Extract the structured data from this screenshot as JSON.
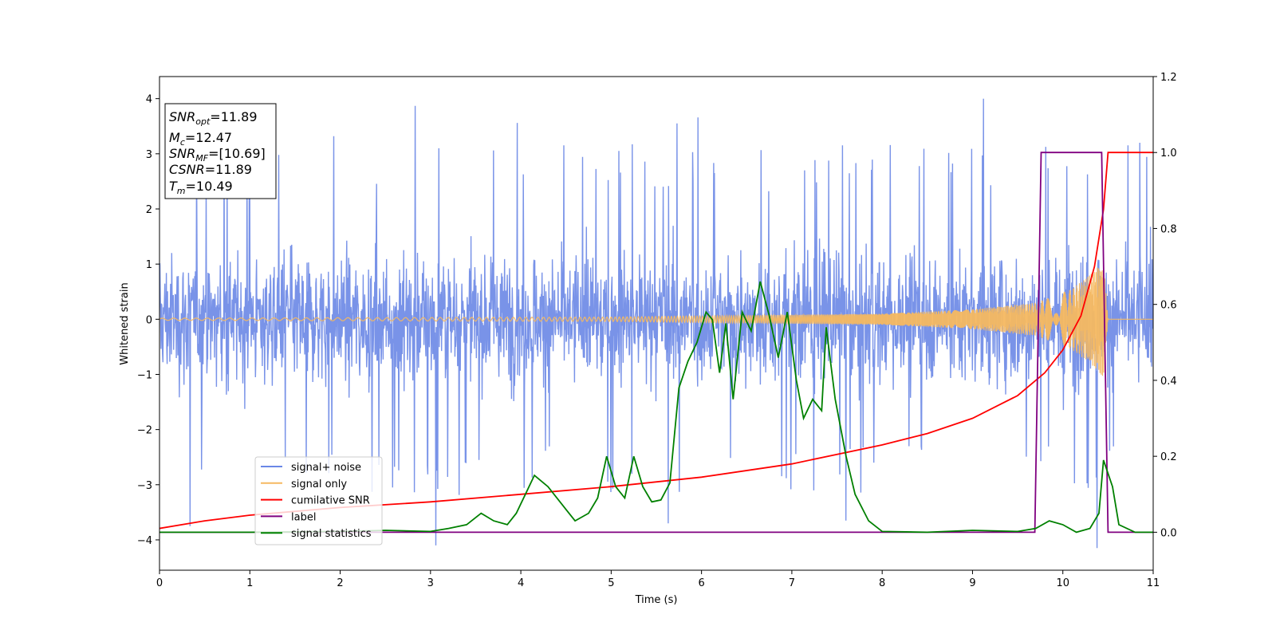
{
  "chart_data": {
    "type": "line",
    "title": "",
    "xlabel": "Time (s)",
    "ylabel": "Whitened strain",
    "y2label": "",
    "xlim": [
      0,
      11
    ],
    "ylim": [
      -4.55,
      4.4
    ],
    "y2lim": [
      -0.1,
      1.2
    ],
    "x_ticks": [
      0,
      1,
      2,
      3,
      4,
      5,
      6,
      7,
      8,
      9,
      10,
      11
    ],
    "y_ticks": [
      -4,
      -3,
      -2,
      -1,
      0,
      1,
      2,
      3,
      4
    ],
    "y2_ticks": [
      "0.0",
      "0.2",
      "0.4",
      "0.6",
      "0.8",
      "1.0",
      "1.2"
    ],
    "grid": false,
    "legend_position": "lower-left",
    "annotation": {
      "lines": [
        {
          "base": "SNR",
          "sub": "opt",
          "value": "=11.89"
        },
        {
          "base": "M",
          "sub": "c",
          "value": "=12.47"
        },
        {
          "base": "SNR",
          "sub": "MF",
          "value": "=[10.69]"
        },
        {
          "base": "CSNR",
          "sub": "",
          "value": "=11.89"
        },
        {
          "base": "T",
          "sub": "m",
          "value": "=10.49"
        }
      ]
    },
    "series": [
      {
        "name": "signal+ noise",
        "color": "#6a87e6",
        "axis": "left",
        "kind": "noise",
        "envelope": {
          "low_typical": -2.0,
          "high_typical": 2.0
        },
        "peaks": [
          {
            "x": 2.83,
            "y": 3.87
          },
          {
            "x": 9.12,
            "y": 4.0
          },
          {
            "x": 3.96,
            "y": 3.56
          },
          {
            "x": 5.96,
            "y": 3.66
          },
          {
            "x": 5.73,
            "y": 3.55
          },
          {
            "x": 1.93,
            "y": 3.32
          },
          {
            "x": 10.85,
            "y": 3.2
          },
          {
            "x": 3.06,
            "y": -4.1
          },
          {
            "x": 10.38,
            "y": -4.15
          },
          {
            "x": 0.34,
            "y": -3.75
          },
          {
            "x": 5.63,
            "y": -3.7
          },
          {
            "x": 7.6,
            "y": -3.65
          }
        ]
      },
      {
        "name": "signal only",
        "color": "#f5b860",
        "axis": "left",
        "kind": "chirp",
        "amplitude": [
          [
            0,
            0.02
          ],
          [
            5,
            0.04
          ],
          [
            8,
            0.1
          ],
          [
            9,
            0.18
          ],
          [
            9.7,
            0.3
          ],
          [
            10.1,
            0.55
          ],
          [
            10.3,
            0.8
          ],
          [
            10.45,
            1.05
          ],
          [
            10.5,
            0.0
          ],
          [
            11,
            0.0
          ]
        ]
      },
      {
        "name": "cumilative SNR",
        "color": "#ff0000",
        "axis": "right",
        "points": [
          [
            0,
            0.01
          ],
          [
            0.5,
            0.03
          ],
          [
            1,
            0.045
          ],
          [
            2,
            0.065
          ],
          [
            3,
            0.08
          ],
          [
            4,
            0.1
          ],
          [
            5,
            0.12
          ],
          [
            6,
            0.145
          ],
          [
            7,
            0.18
          ],
          [
            8,
            0.23
          ],
          [
            8.5,
            0.26
          ],
          [
            9,
            0.3
          ],
          [
            9.5,
            0.36
          ],
          [
            9.8,
            0.42
          ],
          [
            10,
            0.48
          ],
          [
            10.2,
            0.57
          ],
          [
            10.35,
            0.7
          ],
          [
            10.45,
            0.85
          ],
          [
            10.5,
            1.0
          ],
          [
            11,
            1.0
          ]
        ]
      },
      {
        "name": "label",
        "color": "#800080",
        "axis": "right",
        "points": [
          [
            0,
            0.0
          ],
          [
            9.69,
            0.0
          ],
          [
            9.76,
            1.0
          ],
          [
            10.43,
            1.0
          ],
          [
            10.5,
            0.0
          ],
          [
            11,
            0.0
          ]
        ]
      },
      {
        "name": "signal statistics",
        "color": "#008000",
        "axis": "right",
        "points": [
          [
            0,
            0.0
          ],
          [
            1,
            0.0
          ],
          [
            2,
            0.002
          ],
          [
            2.5,
            0.005
          ],
          [
            3,
            0.002
          ],
          [
            3.2,
            0.01
          ],
          [
            3.4,
            0.02
          ],
          [
            3.56,
            0.05
          ],
          [
            3.7,
            0.03
          ],
          [
            3.85,
            0.02
          ],
          [
            3.95,
            0.05
          ],
          [
            4.05,
            0.1
          ],
          [
            4.15,
            0.15
          ],
          [
            4.3,
            0.12
          ],
          [
            4.5,
            0.06
          ],
          [
            4.6,
            0.03
          ],
          [
            4.75,
            0.05
          ],
          [
            4.85,
            0.09
          ],
          [
            4.95,
            0.2
          ],
          [
            5.05,
            0.12
          ],
          [
            5.15,
            0.09
          ],
          [
            5.25,
            0.2
          ],
          [
            5.35,
            0.12
          ],
          [
            5.45,
            0.08
          ],
          [
            5.55,
            0.085
          ],
          [
            5.65,
            0.13
          ],
          [
            5.75,
            0.38
          ],
          [
            5.85,
            0.45
          ],
          [
            5.95,
            0.5
          ],
          [
            6.05,
            0.58
          ],
          [
            6.12,
            0.56
          ],
          [
            6.2,
            0.42
          ],
          [
            6.27,
            0.55
          ],
          [
            6.35,
            0.35
          ],
          [
            6.45,
            0.58
          ],
          [
            6.55,
            0.53
          ],
          [
            6.65,
            0.66
          ],
          [
            6.75,
            0.57
          ],
          [
            6.85,
            0.46
          ],
          [
            6.95,
            0.58
          ],
          [
            7.05,
            0.4
          ],
          [
            7.13,
            0.3
          ],
          [
            7.23,
            0.35
          ],
          [
            7.33,
            0.32
          ],
          [
            7.38,
            0.54
          ],
          [
            7.48,
            0.35
          ],
          [
            7.6,
            0.2
          ],
          [
            7.7,
            0.1
          ],
          [
            7.85,
            0.03
          ],
          [
            8.0,
            0.002
          ],
          [
            8.5,
            0.0
          ],
          [
            9.0,
            0.005
          ],
          [
            9.5,
            0.002
          ],
          [
            9.7,
            0.01
          ],
          [
            9.85,
            0.03
          ],
          [
            10.0,
            0.02
          ],
          [
            10.15,
            0.0
          ],
          [
            10.3,
            0.01
          ],
          [
            10.4,
            0.05
          ],
          [
            10.45,
            0.19
          ],
          [
            10.55,
            0.12
          ],
          [
            10.62,
            0.02
          ],
          [
            10.8,
            0.0
          ],
          [
            11,
            0.0
          ]
        ]
      }
    ]
  }
}
